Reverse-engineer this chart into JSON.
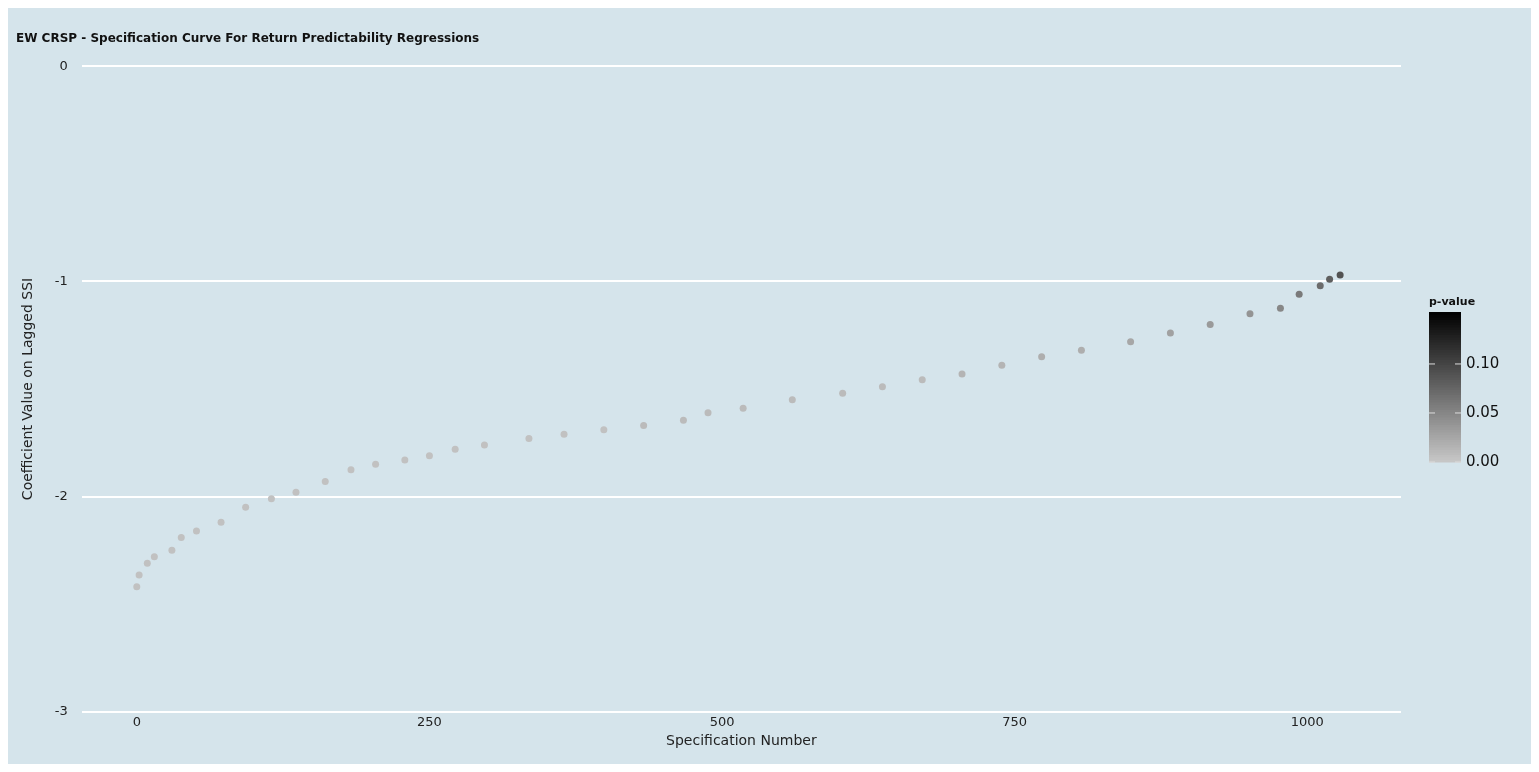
{
  "chart_data": {
    "type": "scatter",
    "title": "EW CRSP - Specification Curve For Return Predictability Regressions",
    "xlabel": "Specification Number",
    "ylabel": "Coefficient Value on Lagged SSI",
    "clabel": "p-value",
    "x": [
      0,
      2,
      9,
      15,
      30,
      38,
      51,
      72,
      93,
      115,
      136,
      161,
      183,
      204,
      229,
      250,
      272,
      297,
      335,
      365,
      399,
      433,
      467,
      488,
      518,
      560,
      603,
      637,
      671,
      705,
      739,
      773,
      807,
      849,
      883,
      917,
      951,
      977,
      993,
      1011,
      1019,
      1028
    ],
    "values": [
      -2.42,
      -2.365,
      -2.31,
      -2.28,
      -2.25,
      -2.19,
      -2.16,
      -2.12,
      -2.05,
      -2.01,
      -1.98,
      -1.93,
      -1.875,
      -1.85,
      -1.83,
      -1.81,
      -1.78,
      -1.76,
      -1.73,
      -1.71,
      -1.69,
      -1.67,
      -1.645,
      -1.61,
      -1.59,
      -1.55,
      -1.52,
      -1.49,
      -1.457,
      -1.43,
      -1.39,
      -1.35,
      -1.32,
      -1.28,
      -1.24,
      -1.2,
      -1.15,
      -1.125,
      -1.06,
      -1.02,
      -0.99,
      -0.97
    ],
    "cvalues": [
      0.005,
      0.005,
      0.005,
      0.005,
      0.005,
      0.005,
      0.005,
      0.005,
      0.005,
      0.005,
      0.005,
      0.005,
      0.005,
      0.005,
      0.005,
      0.005,
      0.005,
      0.005,
      0.005,
      0.005,
      0.005,
      0.01,
      0.01,
      0.01,
      0.01,
      0.01,
      0.01,
      0.01,
      0.01,
      0.015,
      0.015,
      0.02,
      0.02,
      0.025,
      0.03,
      0.035,
      0.04,
      0.05,
      0.06,
      0.07,
      0.08,
      0.09
    ],
    "xlim": [
      -47,
      1080
    ],
    "xticks": [
      0,
      250,
      500,
      750,
      1000
    ],
    "ylim": [
      -3,
      0
    ],
    "yticks": [
      -3,
      -2,
      -1,
      0
    ],
    "clim": [
      0,
      0.153
    ],
    "cticks": [
      {
        "value": 0,
        "label": "0.00"
      },
      {
        "value": 0.05,
        "label": "0.05"
      },
      {
        "value": 0.1,
        "label": "0.10"
      }
    ],
    "grid": "y",
    "legend": false,
    "marker": "circle"
  }
}
